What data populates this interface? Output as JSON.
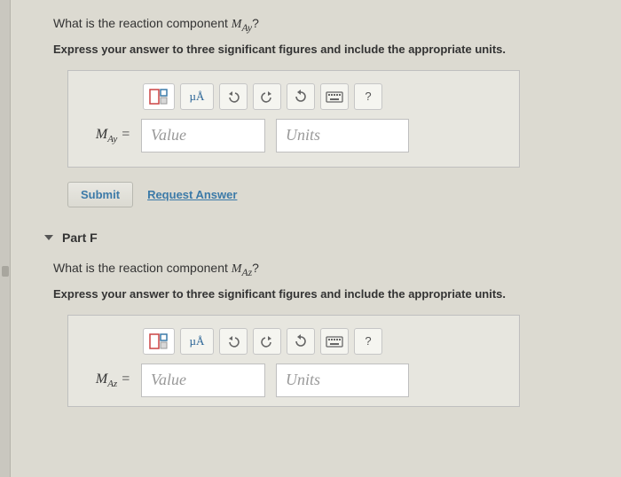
{
  "partE": {
    "question_prefix": "What is the reaction component ",
    "question_var_html": "M<sub>Ay</sub>",
    "question_suffix": "?",
    "instruction": "Express your answer to three significant figures and include the appropriate units.",
    "var_label_html": "M<sub>Ay</sub> =",
    "value_placeholder": "Value",
    "units_placeholder": "Units",
    "toolbar": {
      "ua_label": "µÅ",
      "help_label": "?"
    }
  },
  "actions": {
    "submit_label": "Submit",
    "request_label": "Request Answer"
  },
  "partF": {
    "part_label": "Part F",
    "question_prefix": "What is the reaction component ",
    "question_var_html": "M<sub>Az</sub>",
    "question_suffix": "?",
    "instruction": "Express your answer to three significant figures and include the appropriate units.",
    "var_label_html": "M<sub>Az</sub> =",
    "value_placeholder": "Value",
    "units_placeholder": "Units",
    "toolbar": {
      "ua_label": "µÅ",
      "help_label": "?"
    }
  },
  "colors": {
    "page_bg": "#dcdad1",
    "box_border": "#bfbfbf",
    "link": "#3c7aa8"
  }
}
